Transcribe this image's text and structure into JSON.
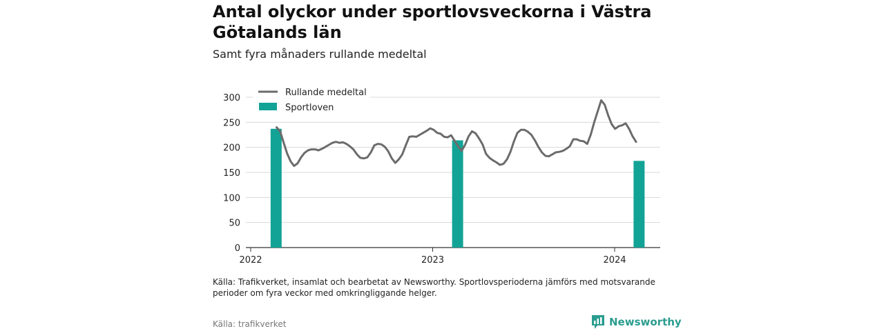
{
  "title": "Antal olyckor under sportlovsveckorna i Västra Götalands län",
  "subtitle": "Samt fyra månaders rullande medeltal",
  "note": "Källa: Trafikverket, insamlat och bearbetat av Newsworthy. Sportlovsperioderna jämförs med motsvarande perioder om fyra veckor med omkringliggande helger.",
  "source": "Källa: trafikverket",
  "brand": {
    "name": "Newsworthy",
    "logo_icon": "newsworthy-logo-icon"
  },
  "colors": {
    "line": "#6b6b6b",
    "bar": "#12a396",
    "grid": "#d9d9d9",
    "axis": "#333333",
    "brand": "#2a9d8f"
  },
  "chart_data": {
    "type": "bar+line",
    "x_axis": {
      "type": "date",
      "ticks": [
        "2022",
        "2023",
        "2024"
      ],
      "range": [
        "2022-01-01",
        "2024-04-01"
      ]
    },
    "y_axis": {
      "range": [
        0,
        300
      ],
      "ticks": [
        "0",
        "50",
        "100",
        "150",
        "200",
        "250",
        "300"
      ]
    },
    "grid": true,
    "legend": {
      "placement": "top-left",
      "entries": [
        "Rullande medeltal",
        "Sportloven"
      ]
    },
    "series": [
      {
        "name": "Rullande medeltal",
        "type": "line",
        "points": [
          [
            "2022-02-22",
            240
          ],
          [
            "2022-03-01",
            232
          ],
          [
            "2022-03-08",
            210
          ],
          [
            "2022-03-15",
            188
          ],
          [
            "2022-03-22",
            172
          ],
          [
            "2022-03-29",
            163
          ],
          [
            "2022-04-05",
            168
          ],
          [
            "2022-04-12",
            180
          ],
          [
            "2022-04-19",
            189
          ],
          [
            "2022-04-26",
            194
          ],
          [
            "2022-05-03",
            196
          ],
          [
            "2022-05-10",
            196
          ],
          [
            "2022-05-17",
            194
          ],
          [
            "2022-05-24",
            197
          ],
          [
            "2022-05-31",
            201
          ],
          [
            "2022-06-07",
            205
          ],
          [
            "2022-06-14",
            209
          ],
          [
            "2022-06-21",
            211
          ],
          [
            "2022-06-28",
            209
          ],
          [
            "2022-07-05",
            210
          ],
          [
            "2022-07-12",
            207
          ],
          [
            "2022-07-19",
            202
          ],
          [
            "2022-07-26",
            196
          ],
          [
            "2022-08-02",
            186
          ],
          [
            "2022-08-09",
            179
          ],
          [
            "2022-08-16",
            178
          ],
          [
            "2022-08-23",
            180
          ],
          [
            "2022-08-30",
            190
          ],
          [
            "2022-09-06",
            204
          ],
          [
            "2022-09-13",
            207
          ],
          [
            "2022-09-20",
            206
          ],
          [
            "2022-09-27",
            201
          ],
          [
            "2022-10-04",
            192
          ],
          [
            "2022-10-11",
            178
          ],
          [
            "2022-10-18",
            169
          ],
          [
            "2022-10-25",
            176
          ],
          [
            "2022-11-01",
            186
          ],
          [
            "2022-11-08",
            204
          ],
          [
            "2022-11-15",
            221
          ],
          [
            "2022-11-22",
            222
          ],
          [
            "2022-11-29",
            221
          ],
          [
            "2022-12-06",
            225
          ],
          [
            "2022-12-13",
            229
          ],
          [
            "2022-12-20",
            233
          ],
          [
            "2022-12-27",
            238
          ],
          [
            "2023-01-03",
            235
          ],
          [
            "2023-01-10",
            229
          ],
          [
            "2023-01-17",
            227
          ],
          [
            "2023-01-24",
            221
          ],
          [
            "2023-01-31",
            220
          ],
          [
            "2023-02-07",
            224
          ],
          [
            "2023-02-14",
            213
          ],
          [
            "2023-02-21",
            202
          ],
          [
            "2023-02-28",
            193
          ],
          [
            "2023-03-07",
            205
          ],
          [
            "2023-03-14",
            222
          ],
          [
            "2023-03-21",
            232
          ],
          [
            "2023-03-28",
            228
          ],
          [
            "2023-04-04",
            218
          ],
          [
            "2023-04-11",
            206
          ],
          [
            "2023-04-18",
            187
          ],
          [
            "2023-04-25",
            179
          ],
          [
            "2023-05-02",
            174
          ],
          [
            "2023-05-09",
            170
          ],
          [
            "2023-05-16",
            165
          ],
          [
            "2023-05-23",
            167
          ],
          [
            "2023-05-30",
            176
          ],
          [
            "2023-06-06",
            191
          ],
          [
            "2023-06-13",
            212
          ],
          [
            "2023-06-20",
            229
          ],
          [
            "2023-06-27",
            235
          ],
          [
            "2023-07-04",
            235
          ],
          [
            "2023-07-11",
            231
          ],
          [
            "2023-07-18",
            225
          ],
          [
            "2023-07-25",
            214
          ],
          [
            "2023-08-01",
            201
          ],
          [
            "2023-08-08",
            190
          ],
          [
            "2023-08-15",
            183
          ],
          [
            "2023-08-22",
            182
          ],
          [
            "2023-08-29",
            186
          ],
          [
            "2023-09-05",
            190
          ],
          [
            "2023-09-12",
            191
          ],
          [
            "2023-09-19",
            193
          ],
          [
            "2023-09-26",
            197
          ],
          [
            "2023-10-03",
            202
          ],
          [
            "2023-10-10",
            216
          ],
          [
            "2023-10-17",
            216
          ],
          [
            "2023-10-24",
            213
          ],
          [
            "2023-10-31",
            212
          ],
          [
            "2023-11-07",
            207
          ],
          [
            "2023-11-14",
            225
          ],
          [
            "2023-11-21",
            250
          ],
          [
            "2023-11-28",
            272
          ],
          [
            "2023-12-05",
            294
          ],
          [
            "2023-12-12",
            285
          ],
          [
            "2023-12-19",
            264
          ],
          [
            "2023-12-26",
            246
          ],
          [
            "2024-01-02",
            237
          ],
          [
            "2024-01-09",
            242
          ],
          [
            "2024-01-16",
            244
          ],
          [
            "2024-01-23",
            248
          ],
          [
            "2024-01-30",
            237
          ],
          [
            "2024-02-06",
            222
          ],
          [
            "2024-02-13",
            211
          ]
        ]
      },
      {
        "name": "Sportloven",
        "type": "bar",
        "points": [
          [
            "2022-02-21",
            237
          ],
          [
            "2023-02-20",
            214
          ],
          [
            "2024-02-19",
            173
          ]
        ]
      }
    ]
  }
}
